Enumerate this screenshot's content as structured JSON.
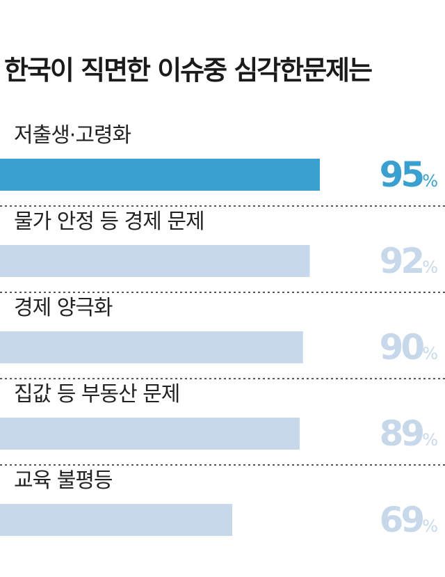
{
  "chart_data": {
    "type": "bar",
    "orientation": "horizontal",
    "title": "한국이 직면한 이슈중 심각한문제는",
    "categories": [
      "저출생·고령화",
      "물가 안정 등 경제 문제",
      "경제 양극화",
      "집값 등 부동산 문제",
      "교육 불평등"
    ],
    "values": [
      95,
      92,
      90,
      89,
      69
    ],
    "unit": "%",
    "xlim": [
      0,
      100
    ],
    "grid": false,
    "separators": "dotted",
    "colors": {
      "highlight_bar": "#3aa0d0",
      "highlight_value": "#3aa0d0",
      "bar": "#c6d8ea",
      "value": "#c6d8ea",
      "separator": "#555555"
    }
  }
}
